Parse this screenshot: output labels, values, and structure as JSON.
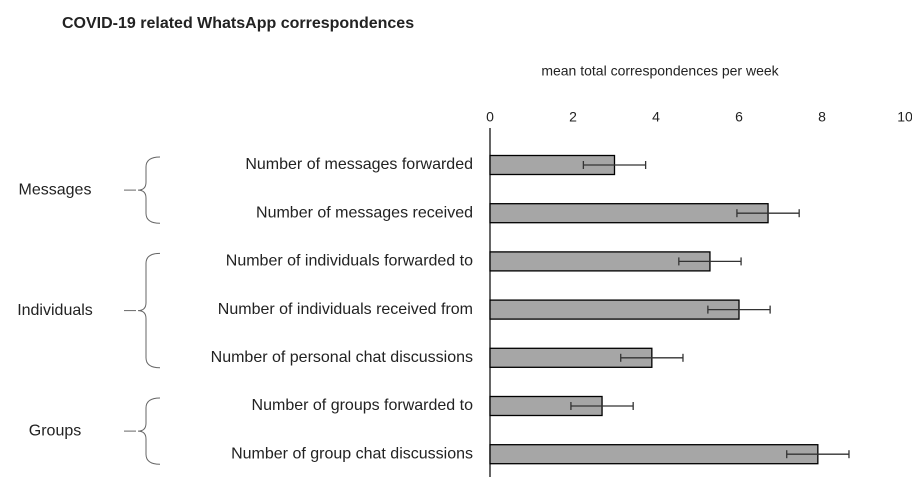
{
  "chart_data": {
    "type": "bar",
    "orientation": "horizontal",
    "title": "COVID-19 related WhatsApp correspondences",
    "xlabel": "mean total correspondences per week",
    "color": "#a6a6a6",
    "xlim": [
      0,
      10
    ],
    "xticks": [
      0,
      2,
      4,
      6,
      8,
      10
    ],
    "groups": [
      {
        "name": "Messages",
        "categories": [
          "Number of messages forwarded",
          "Number of messages received"
        ],
        "values": [
          3.0,
          6.7
        ],
        "errors": [
          0.75,
          0.75
        ]
      },
      {
        "name": "Individuals",
        "categories": [
          "Number of individuals forwarded to",
          "Number of individuals received from",
          "Number of personal chat discussions"
        ],
        "values": [
          5.3,
          6.0,
          3.9
        ],
        "errors": [
          0.75,
          0.75,
          0.75
        ]
      },
      {
        "name": "Groups",
        "categories": [
          "Number of groups forwarded to",
          "Number of group chat discussions"
        ],
        "values": [
          2.7,
          7.9
        ],
        "errors": [
          0.75,
          0.75
        ]
      }
    ]
  }
}
